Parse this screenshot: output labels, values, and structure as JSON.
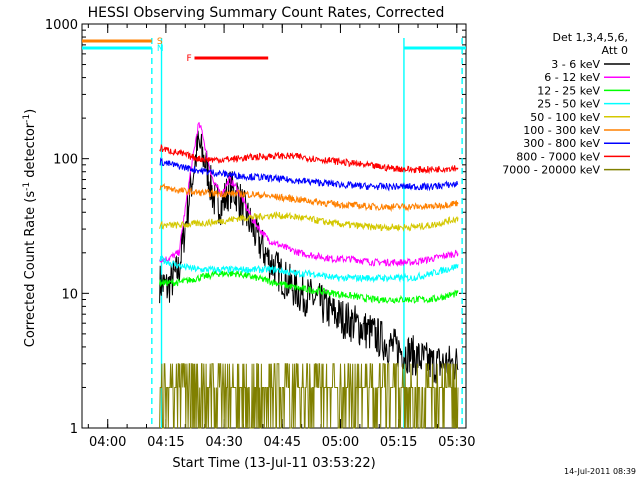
{
  "chart_data": {
    "type": "line",
    "title": "HESSI Observing Summary Count Rates, Corrected",
    "xlabel": "Start Time (13-Jul-11 03:53:22)",
    "ylabel_main": "Corrected Count Rate (s",
    "ylabel_sup1": "-1",
    "ylabel_mid": " detector",
    "ylabel_sup2": "-1",
    "ylabel_end": ")",
    "yscale": "log",
    "xlim_min": [
      0,
      99
    ],
    "ylim": [
      1,
      1000
    ],
    "x_ticks": [
      {
        "min": 6.63,
        "label": "04:00"
      },
      {
        "min": 21.63,
        "label": "04:15"
      },
      {
        "min": 36.63,
        "label": "04:30"
      },
      {
        "min": 51.63,
        "label": "04:45"
      },
      {
        "min": 66.63,
        "label": "05:00"
      },
      {
        "min": 81.63,
        "label": "05:15"
      },
      {
        "min": 96.63,
        "label": "05:30"
      }
    ],
    "y_ticks": [
      {
        "value": 1,
        "label": "1"
      },
      {
        "value": 10,
        "label": "10"
      },
      {
        "value": 100,
        "label": "100"
      },
      {
        "value": 1000,
        "label": "1000"
      }
    ],
    "legend": {
      "header_line1": "Det 1,3,4,5,6,",
      "header_line2": "Att 0",
      "placement": "right"
    },
    "series": [
      {
        "name": "3 - 6 keV",
        "color": "#000000",
        "x": [
          20,
          22,
          25,
          28,
          30,
          32,
          34,
          36,
          38,
          40,
          44,
          48,
          52,
          56,
          60,
          65,
          70,
          75,
          80,
          85,
          90,
          97
        ],
        "y": [
          12,
          11,
          15,
          60,
          130,
          90,
          50,
          45,
          60,
          55,
          30,
          18,
          13,
          10,
          9,
          7,
          6,
          5,
          4,
          3.5,
          3,
          3
        ]
      },
      {
        "name": "6 - 12 keV",
        "color": "#ff00ff",
        "x": [
          20,
          22,
          25,
          28,
          30,
          31,
          32,
          34,
          36,
          38,
          40,
          44,
          48,
          52,
          56,
          60,
          65,
          70,
          75,
          80,
          85,
          90,
          97
        ],
        "y": [
          18,
          18,
          20,
          80,
          180,
          160,
          110,
          65,
          55,
          70,
          60,
          35,
          25,
          22,
          20,
          19,
          18,
          18,
          17,
          17,
          17,
          18,
          20
        ]
      },
      {
        "name": "12 - 25 keV",
        "color": "#00ff00",
        "x": [
          20,
          25,
          30,
          35,
          40,
          45,
          50,
          55,
          60,
          65,
          70,
          75,
          80,
          85,
          90,
          97
        ],
        "y": [
          12,
          12,
          13,
          14,
          14,
          13,
          12,
          11,
          10.5,
          10,
          9.5,
          9,
          9,
          9,
          9,
          10
        ]
      },
      {
        "name": "25 - 50 keV",
        "color": "#00ffff",
        "x": [
          20,
          25,
          30,
          35,
          40,
          45,
          50,
          55,
          60,
          65,
          70,
          75,
          80,
          85,
          90,
          97
        ],
        "y": [
          18,
          16,
          15,
          15,
          15,
          15,
          15,
          14,
          14,
          13,
          13,
          13,
          13,
          13,
          14,
          16
        ]
      },
      {
        "name": "50 - 100 keV",
        "color": "#d4c800",
        "x": [
          20,
          25,
          30,
          35,
          40,
          45,
          50,
          55,
          60,
          65,
          70,
          75,
          80,
          85,
          90,
          97
        ],
        "y": [
          32,
          32,
          33,
          34,
          36,
          37,
          38,
          37,
          35,
          33,
          32,
          31,
          31,
          31,
          32,
          36
        ]
      },
      {
        "name": "100 - 300 keV",
        "color": "#ff8000",
        "x": [
          20,
          25,
          30,
          35,
          40,
          45,
          50,
          55,
          60,
          65,
          70,
          75,
          80,
          85,
          90,
          97
        ],
        "y": [
          62,
          58,
          56,
          55,
          55,
          54,
          52,
          50,
          48,
          46,
          45,
          44,
          44,
          44,
          44,
          47
        ]
      },
      {
        "name": "300 - 800 keV",
        "color": "#0000ff",
        "x": [
          20,
          25,
          30,
          35,
          40,
          45,
          50,
          55,
          60,
          65,
          70,
          75,
          80,
          85,
          90,
          97
        ],
        "y": [
          95,
          88,
          82,
          78,
          75,
          73,
          71,
          69,
          67,
          65,
          63,
          62,
          62,
          62,
          62,
          65
        ]
      },
      {
        "name": "800 - 7000 keV",
        "color": "#ff0000",
        "x": [
          20,
          25,
          30,
          35,
          40,
          45,
          50,
          55,
          60,
          65,
          70,
          75,
          80,
          85,
          90,
          97
        ],
        "y": [
          120,
          110,
          100,
          98,
          100,
          103,
          105,
          104,
          100,
          96,
          92,
          88,
          85,
          83,
          83,
          86
        ]
      },
      {
        "name": "7000 - 20000 keV",
        "color": "#808000",
        "x": [
          20,
          25,
          30,
          35,
          40,
          45,
          50,
          55,
          60,
          65,
          70,
          75,
          80,
          85,
          90,
          97
        ],
        "y": [
          2,
          2,
          2,
          2,
          2,
          2,
          3,
          3,
          2,
          2,
          2,
          2,
          2,
          2,
          2,
          2
        ]
      }
    ],
    "flags": [
      {
        "label": "S",
        "color": "#ff8000",
        "x_start": 0,
        "x_end": 18
      },
      {
        "label": "N",
        "color": "#00ffff",
        "x_start": 0,
        "x_end": 18
      },
      {
        "label": "N",
        "color": "#00ffff",
        "x_start": 83,
        "x_end": 99
      },
      {
        "label": "F",
        "color": "#ff0000",
        "x_start": 29,
        "x_end": 48
      }
    ],
    "vertical_markers": [
      {
        "min": 18,
        "color": "#00ffff",
        "style": "dashed"
      },
      {
        "min": 20.5,
        "color": "#00ffff",
        "style": "solid"
      },
      {
        "min": 83,
        "color": "#00ffff",
        "style": "solid"
      },
      {
        "min": 98,
        "color": "#00ffff",
        "style": "dashed"
      }
    ]
  },
  "footer": {
    "timestamp": "14-Jul-2011 08:39"
  },
  "colors": {
    "background": "#ffffff",
    "axis": "#000000"
  }
}
